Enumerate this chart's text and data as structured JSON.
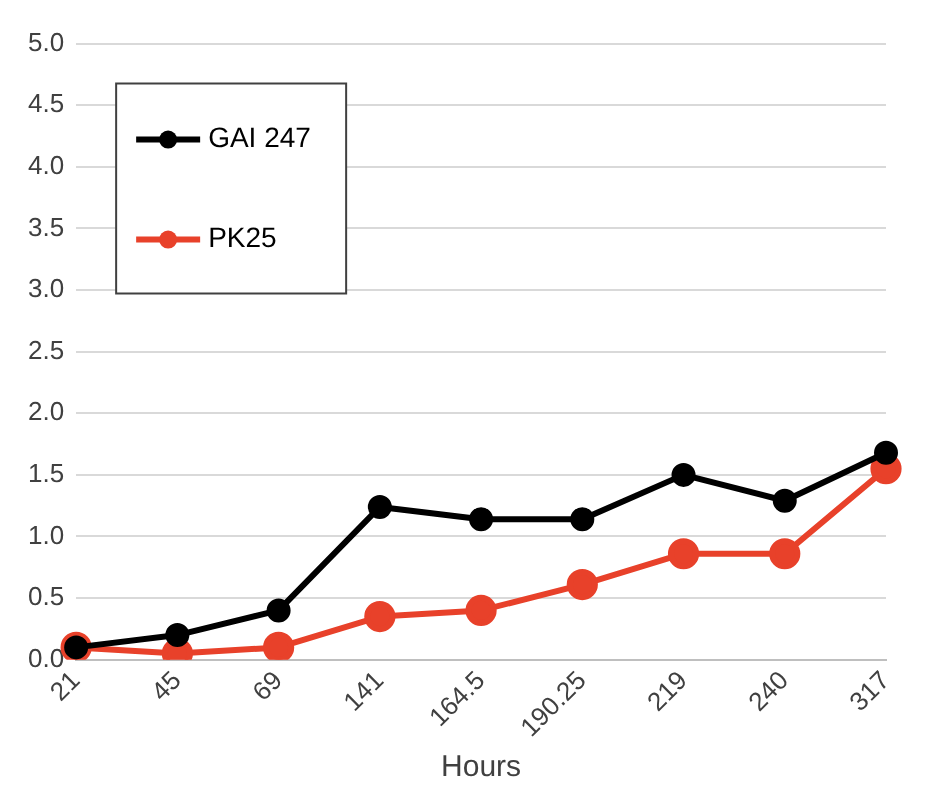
{
  "chart_data": {
    "type": "line",
    "xlabel": "Hours",
    "categories": [
      "21",
      "45",
      "69",
      "141",
      "164.5",
      "190.25",
      "219",
      "240",
      "317"
    ],
    "series": [
      {
        "name": "GAI 247",
        "color": "#000000",
        "values": [
          0.1,
          0.2,
          0.4,
          1.24,
          1.14,
          1.14,
          1.5,
          1.29,
          1.68
        ]
      },
      {
        "name": "PK25",
        "color": "#e8412a",
        "values": [
          0.1,
          0.05,
          0.1,
          0.35,
          0.4,
          0.61,
          0.86,
          0.86,
          1.55
        ]
      }
    ],
    "ylim": [
      0,
      5
    ],
    "yticks": [
      {
        "value": 0,
        "label": "0.0"
      },
      {
        "value": 0.5,
        "label": "0.5"
      },
      {
        "value": 1,
        "label": "1.0"
      },
      {
        "value": 1.5,
        "label": "1.5"
      },
      {
        "value": 2,
        "label": "2.0"
      },
      {
        "value": 2.5,
        "label": "2.5"
      },
      {
        "value": 3,
        "label": "3.0"
      },
      {
        "value": 3.5,
        "label": "3.5"
      },
      {
        "value": 4,
        "label": "4.0"
      },
      {
        "value": 4.5,
        "label": "4.5"
      },
      {
        "value": 5,
        "label": "5.0"
      }
    ],
    "grid": "y",
    "legend": "top left",
    "marker": "circle",
    "line_style": "solid"
  }
}
